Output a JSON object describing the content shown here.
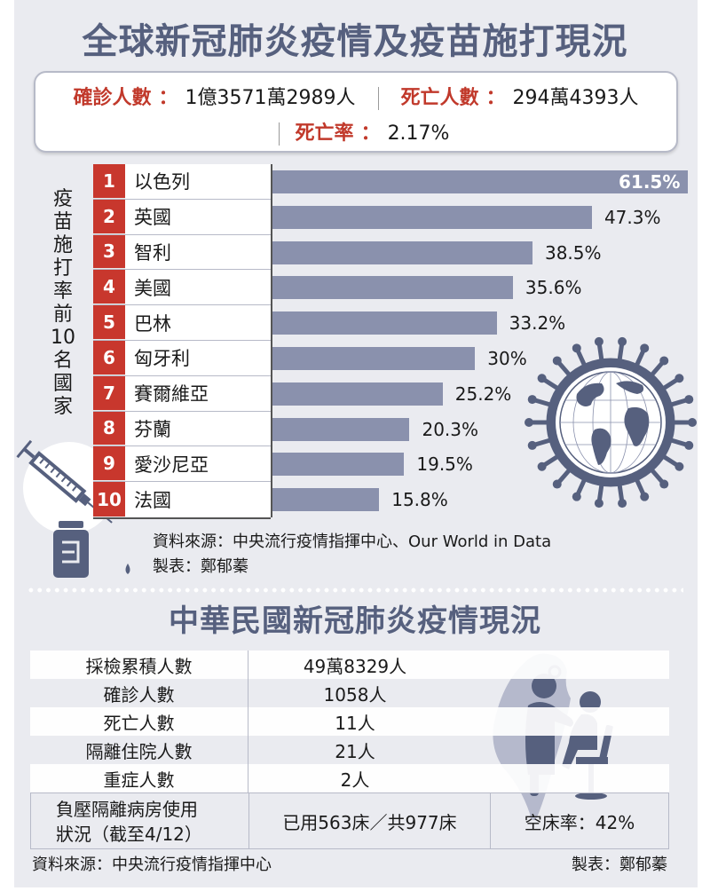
{
  "header": {
    "title": "全球新冠肺炎疫情及疫苗施打現況"
  },
  "global_stats": {
    "confirmed_label": "確診人數",
    "confirmed_value": "1億3571萬2989人",
    "deaths_label": "死亡人數",
    "deaths_value": "294萬4393人",
    "mortality_label": "死亡率",
    "mortality_value": "2.17%",
    "colon": "："
  },
  "vaccine_section": {
    "vertical_label_chars": [
      "疫",
      "苗",
      "施",
      "打",
      "率",
      "前",
      "10",
      "名",
      "國",
      "家"
    ],
    "source": "資料來源：中央流行疫情指揮中心、Our World in Data",
    "credit": "製表：鄭郁蓁",
    "icons": [
      "virus-globe-icon",
      "syringe-icon",
      "vaccine-vial-icon"
    ]
  },
  "chart_data": {
    "type": "bar",
    "orientation": "horizontal",
    "title": "疫苗施打率前10名國家",
    "xlabel": "",
    "ylabel": "疫苗施打率前10名國家",
    "categories": [
      "以色列",
      "英國",
      "智利",
      "美國",
      "巴林",
      "匈牙利",
      "賽爾維亞",
      "芬蘭",
      "愛沙尼亞",
      "法國"
    ],
    "ranks": [
      "1",
      "2",
      "3",
      "4",
      "5",
      "6",
      "7",
      "8",
      "9",
      "10"
    ],
    "values": [
      61.5,
      47.3,
      38.5,
      35.6,
      33.2,
      30,
      25.2,
      20.3,
      19.5,
      15.8
    ],
    "value_labels": [
      "61.5%",
      "47.3%",
      "38.5%",
      "35.6%",
      "33.2%",
      "30%",
      "25.2%",
      "20.3%",
      "19.5%",
      "15.8%"
    ],
    "unit": "%",
    "grid": false,
    "legend": "none",
    "bar_color": "#8a91ad",
    "rank_color": "#c8372d"
  },
  "taiwan_section": {
    "title": "中華民國新冠肺炎疫情現況",
    "rows": [
      {
        "label": "採檢累積人數",
        "value": "49萬8329人"
      },
      {
        "label": "確診人數",
        "value": "1058人"
      },
      {
        "label": "死亡人數",
        "value": "11人"
      },
      {
        "label": "隔離住院人數",
        "value": "21人"
      },
      {
        "label": "重症人數",
        "value": "2人"
      }
    ],
    "negative_pressure": {
      "label_line1": "負壓隔離病房使用",
      "label_line2": "狀況（截至4/12）",
      "used": "已用563床／共977床",
      "empty_rate": "空床率：42%"
    },
    "source": "資料來源：中央流行疫情指揮中心",
    "credit": "製表：鄭郁蓁",
    "icons": [
      "taiwan-map-icon",
      "doctor-patient-icon"
    ]
  },
  "colors": {
    "heading": "#56607e",
    "accent_red": "#c1392b",
    "panel_bg": "#eaebf0",
    "bar": "#8a91ad"
  }
}
